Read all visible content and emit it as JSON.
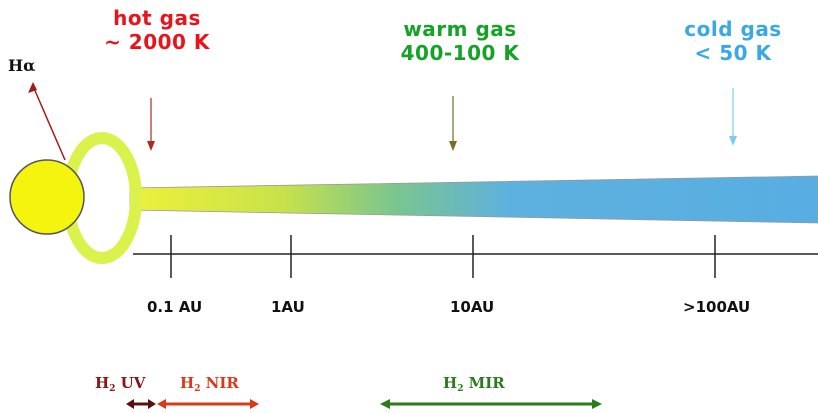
{
  "star": {
    "label_prefix": "H",
    "label_symbol": "α"
  },
  "zones": {
    "hot": {
      "line1": "hot gas",
      "line2": "~ 2000 K",
      "color": "#e8141b"
    },
    "warm": {
      "line1": "warm gas",
      "line2": "400-100 K",
      "color": "#14a326"
    },
    "cold": {
      "line1": "cold gas",
      "line2": "< 50 K",
      "color": "#3aa7e6"
    }
  },
  "axis": {
    "ticks": [
      "0.1 AU",
      "1AU",
      "10AU",
      ">100AU"
    ]
  },
  "diagnostics": [
    {
      "prefix": "H",
      "sub": "2",
      "suffix": " UV",
      "color": "#8b1414"
    },
    {
      "prefix": "H",
      "sub": "2",
      "suffix": " NIR",
      "color": "#d83a18"
    },
    {
      "prefix": "H",
      "sub": "2",
      "suffix": " MIR",
      "color": "#2b7a1c"
    }
  ],
  "colors": {
    "star_fill": "#f5f50f",
    "ring": "#d9f04a",
    "disk_start": "#e9ee3a",
    "disk_mid": "#7cc48a",
    "disk_end": "#5aaee0"
  }
}
